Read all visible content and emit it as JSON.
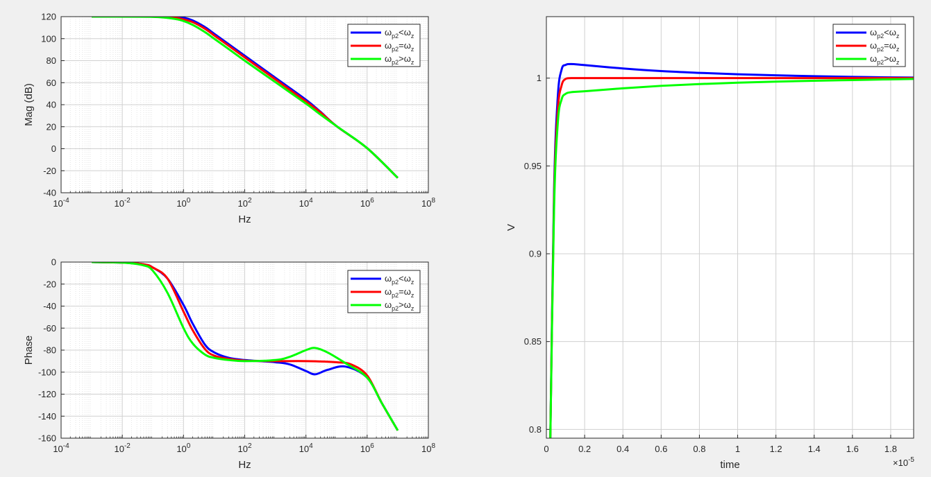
{
  "colors": {
    "blue": "#0000ff",
    "red": "#ff0000",
    "green": "#00ff00",
    "grid": "#d0d0d0",
    "minor_grid": "#e4e4e4",
    "axis": "#262626",
    "bg": "#f0f0f0"
  },
  "legend": [
    {
      "base": "ω",
      "sub": "p2",
      "op": "<",
      "base2": "ω",
      "sub2": "z",
      "color": "blue"
    },
    {
      "base": "ω",
      "sub": "p2",
      "op": "=",
      "base2": "ω",
      "sub2": "z",
      "color": "red"
    },
    {
      "base": "ω",
      "sub": "p2",
      "op": ">",
      "base2": "ω",
      "sub2": "z",
      "color": "green"
    }
  ],
  "chart_data": [
    {
      "id": "mag",
      "type": "line",
      "xscale": "log",
      "xlabel": "Hz",
      "ylabel": "Mag (dB)",
      "xlim": [
        0.0001,
        100000000.0
      ],
      "ylim": [
        -40,
        120
      ],
      "xticks": [
        {
          "base": "10",
          "exp": "-4"
        },
        {
          "base": "10",
          "exp": "-2"
        },
        {
          "base": "10",
          "exp": "0"
        },
        {
          "base": "10",
          "exp": "2"
        },
        {
          "base": "10",
          "exp": "4"
        },
        {
          "base": "10",
          "exp": "6"
        },
        {
          "base": "10",
          "exp": "8"
        }
      ],
      "yticks": [
        "-40",
        "-20",
        "0",
        "20",
        "40",
        "60",
        "80",
        "100",
        "120"
      ],
      "grid": true,
      "legend_position": "top-right",
      "series": [
        {
          "name": "ωp2<ωz",
          "color": "blue",
          "x": [
            0.001,
            0.1,
            0.5,
            1,
            2,
            5,
            10,
            30,
            100,
            1000,
            10000,
            30000,
            100000,
            1000000,
            10000000
          ],
          "y": [
            120,
            120,
            119.5,
            119,
            116.5,
            110.5,
            104.5,
            95,
            84.5,
            64.5,
            44.5,
            33.5,
            20.5,
            0.5,
            -26.5
          ]
        },
        {
          "name": "ωp2=ωz",
          "color": "red",
          "x": [
            0.001,
            0.1,
            0.5,
            1,
            2,
            5,
            10,
            30,
            100,
            1000,
            10000,
            30000,
            100000,
            1000000,
            10000000
          ],
          "y": [
            120,
            120,
            119,
            117.5,
            115,
            109,
            103,
            93.5,
            83,
            63,
            43,
            33,
            20.5,
            0.5,
            -26.5
          ]
        },
        {
          "name": "ωp2>ωz",
          "color": "green",
          "x": [
            0.001,
            0.1,
            0.5,
            1,
            2,
            5,
            10,
            30,
            100,
            1000,
            10000,
            30000,
            100000,
            1000000,
            10000000
          ],
          "y": [
            120,
            119.8,
            118,
            116,
            112.5,
            106,
            100,
            90.5,
            80,
            60.5,
            41,
            31,
            20.5,
            0.5,
            -26.5
          ]
        }
      ]
    },
    {
      "id": "phase",
      "type": "line",
      "xscale": "log",
      "xlabel": "Hz",
      "ylabel": "Phase",
      "xlim": [
        0.0001,
        100000000.0
      ],
      "ylim": [
        -160,
        0
      ],
      "xticks": [
        {
          "base": "10",
          "exp": "-4"
        },
        {
          "base": "10",
          "exp": "-2"
        },
        {
          "base": "10",
          "exp": "0"
        },
        {
          "base": "10",
          "exp": "2"
        },
        {
          "base": "10",
          "exp": "4"
        },
        {
          "base": "10",
          "exp": "6"
        },
        {
          "base": "10",
          "exp": "8"
        }
      ],
      "yticks": [
        "-160",
        "-140",
        "-120",
        "-100",
        "-80",
        "-60",
        "-40",
        "-20",
        "0"
      ],
      "grid": true,
      "legend_position": "top-right",
      "series": [
        {
          "name": "ωp2<ωz",
          "color": "blue",
          "x": [
            0.001,
            0.01,
            0.05,
            0.1,
            0.3,
            1,
            2,
            5,
            10,
            30,
            100,
            1000,
            3000,
            10000,
            20000,
            50000,
            200000,
            1000000,
            3000000,
            10000000
          ],
          "y": [
            0,
            -0.5,
            -2,
            -5,
            -15,
            -39,
            -56,
            -75,
            -82,
            -87,
            -89,
            -91,
            -93,
            -99,
            -102,
            -98,
            -95,
            -105,
            -128,
            -153
          ]
        },
        {
          "name": "ωp2=ωz",
          "color": "red",
          "x": [
            0.001,
            0.01,
            0.05,
            0.1,
            0.3,
            1,
            2,
            5,
            10,
            30,
            100,
            1000,
            10000,
            100000,
            300000,
            1000000,
            3000000,
            10000000
          ],
          "y": [
            0,
            -0.5,
            -2,
            -5,
            -15,
            -45,
            -62,
            -79,
            -85,
            -88,
            -89.5,
            -90,
            -90,
            -91,
            -93,
            -103,
            -128,
            -153
          ]
        },
        {
          "name": "ωp2>ωz",
          "color": "green",
          "x": [
            0.001,
            0.01,
            0.05,
            0.1,
            0.3,
            1,
            2,
            5,
            10,
            30,
            100,
            1000,
            3000,
            10000,
            20000,
            50000,
            200000,
            1000000,
            3000000,
            10000000
          ],
          "y": [
            0,
            -0.5,
            -3,
            -8,
            -28,
            -60,
            -74,
            -84,
            -87,
            -89,
            -90,
            -89,
            -86,
            -80,
            -78,
            -82,
            -92,
            -105,
            -128,
            -153
          ]
        }
      ]
    },
    {
      "id": "step",
      "type": "line",
      "xscale": "linear",
      "xlabel": "time",
      "ylabel": "V",
      "xlim": [
        0,
        1.92
      ],
      "ylim": [
        0.795,
        1.035
      ],
      "x_multiplier": {
        "prefix": "×10",
        "exp": "-5"
      },
      "xticks": [
        "0",
        "0.2",
        "0.4",
        "0.6",
        "0.8",
        "1",
        "1.2",
        "1.4",
        "1.6",
        "1.8"
      ],
      "yticks": [
        "0.8",
        "0.85",
        "0.9",
        "0.95",
        "1"
      ],
      "grid": true,
      "legend_position": "top-right",
      "series": [
        {
          "name": "ωp2<ωz",
          "color": "blue",
          "x": [
            0.02,
            0.04,
            0.06,
            0.08,
            0.1,
            0.13,
            0.2,
            0.4,
            0.6,
            0.8,
            1.0,
            1.2,
            1.4,
            1.6,
            1.8,
            1.92
          ],
          "y": [
            0.79,
            0.935,
            0.99,
            1.005,
            1.0075,
            1.008,
            1.0074,
            1.0055,
            1.004,
            1.003,
            1.0022,
            1.0016,
            1.0011,
            1.0007,
            1.0004,
            1.0003
          ]
        },
        {
          "name": "ωp2=ωz",
          "color": "red",
          "x": [
            0.02,
            0.04,
            0.06,
            0.08,
            0.1,
            0.13,
            0.2,
            0.5,
            1.0,
            1.92
          ],
          "y": [
            0.79,
            0.93,
            0.982,
            0.996,
            0.9995,
            1.0,
            1.0,
            1.0,
            1.0,
            1.0
          ]
        },
        {
          "name": "ωp2>ωz",
          "color": "green",
          "x": [
            0.02,
            0.04,
            0.06,
            0.08,
            0.1,
            0.13,
            0.2,
            0.4,
            0.6,
            0.8,
            1.0,
            1.2,
            1.4,
            1.6,
            1.8,
            1.92
          ],
          "y": [
            0.79,
            0.925,
            0.975,
            0.988,
            0.991,
            0.992,
            0.9925,
            0.9942,
            0.9956,
            0.9966,
            0.9974,
            0.998,
            0.9985,
            0.9989,
            0.9993,
            0.9995
          ]
        }
      ]
    }
  ]
}
